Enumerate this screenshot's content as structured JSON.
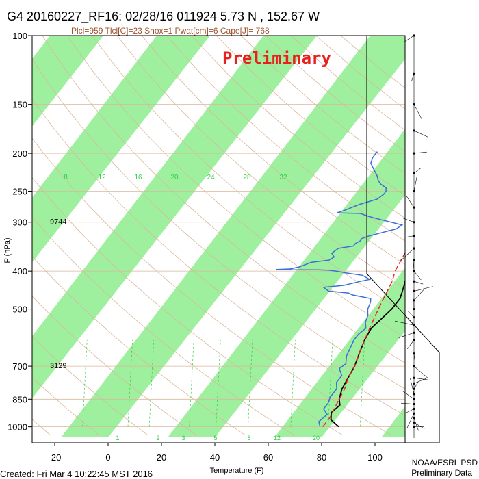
{
  "header": {
    "title": "G4 20160227_RF16: 02/28/16 011924   5.73 N , 152.67 W",
    "subtitle": "Plcl=959 Tlcl[C]=23 Shox=1 Pwat[cm]=6 Cape[J]= 768",
    "watermark": "Preliminary"
  },
  "footer": {
    "created": "Created: Fri Mar  4 10:22:45 MST 2016",
    "org": "NOAA/ESRL PSD",
    "org_sub": "Preliminary Data"
  },
  "colors": {
    "band": "#9ef09e",
    "temperature": "#000000",
    "dewpoint": "#3a6fd8",
    "parcel": "#e8201e",
    "dry_adiabat": "#d9b79a",
    "mixing_ratio": "#2ecc40",
    "watermark": "#e8201e",
    "subtitle": "#a0522d"
  },
  "chart_data": {
    "type": "line",
    "xlabel": "Temperature (F)",
    "ylabel": "P (hPa)",
    "x_ticks": [
      "-20",
      "0",
      "20",
      "40",
      "60",
      "80",
      "100"
    ],
    "y_ticks": [
      "100",
      "150",
      "200",
      "250",
      "300",
      "400",
      "500",
      "700",
      "850",
      "1000"
    ],
    "height_labels": [
      {
        "p": 300,
        "text": "9744"
      },
      {
        "p": 700,
        "text": "3129"
      }
    ],
    "mixing_ratio_labels": [
      "8",
      "12",
      "16",
      "20",
      "24",
      "28",
      "32"
    ],
    "mixing_ratio_bottom_labels": [
      "1",
      "2",
      "3",
      "5",
      "8",
      "12",
      "20"
    ],
    "series": [
      {
        "key": "temperature",
        "points": [
          [
            84,
            1000
          ],
          [
            79,
            960
          ],
          [
            77,
            920
          ],
          [
            78,
            880
          ],
          [
            76,
            850
          ],
          [
            74,
            800
          ],
          [
            73,
            750
          ],
          [
            72,
            700
          ],
          [
            70,
            650
          ],
          [
            68,
            600
          ],
          [
            67,
            560
          ],
          [
            68,
            530
          ],
          [
            69,
            500
          ],
          [
            69,
            470
          ],
          [
            67,
            440
          ],
          [
            65,
            415
          ],
          [
            65,
            400
          ],
          [
            65,
            385
          ],
          [
            64,
            370
          ],
          [
            63,
            355
          ],
          [
            62,
            340
          ],
          [
            60,
            320
          ],
          [
            58,
            300
          ],
          [
            56,
            285
          ],
          [
            52,
            265
          ],
          [
            51,
            255
          ],
          [
            48,
            235
          ],
          [
            46,
            225
          ],
          [
            43,
            210
          ],
          [
            38,
            190
          ],
          [
            34,
            175
          ]
        ]
      },
      {
        "key": "dewpoint",
        "points": [
          [
            77,
            1000
          ],
          [
            75,
            970
          ],
          [
            76,
            930
          ],
          [
            73,
            900
          ],
          [
            73,
            870
          ],
          [
            72,
            840
          ],
          [
            72,
            800
          ],
          [
            70,
            770
          ],
          [
            70,
            740
          ],
          [
            67,
            710
          ],
          [
            68,
            690
          ],
          [
            66,
            660
          ],
          [
            65,
            630
          ],
          [
            64,
            600
          ],
          [
            64,
            580
          ],
          [
            65,
            560
          ],
          [
            63,
            540
          ],
          [
            62,
            520
          ],
          [
            60,
            500
          ],
          [
            59,
            480
          ],
          [
            58,
            470
          ],
          [
            50,
            460
          ],
          [
            48,
            455
          ],
          [
            40,
            450
          ],
          [
            37,
            440
          ],
          [
            44,
            435
          ],
          [
            49,
            425
          ],
          [
            52,
            420
          ],
          [
            48,
            410
          ],
          [
            42,
            405
          ],
          [
            37,
            400
          ],
          [
            34,
            398
          ],
          [
            30,
            397
          ],
          [
            24,
            397
          ],
          [
            18,
            397
          ],
          [
            14,
            396
          ],
          [
            19,
            395
          ],
          [
            22,
            390
          ],
          [
            25,
            380
          ],
          [
            31,
            375
          ],
          [
            32,
            368
          ],
          [
            30,
            360
          ],
          [
            31,
            350
          ],
          [
            36,
            345
          ],
          [
            36,
            340
          ],
          [
            37,
            335
          ],
          [
            37,
            330
          ],
          [
            39,
            325
          ],
          [
            42,
            320
          ],
          [
            47,
            312
          ],
          [
            48,
            305
          ],
          [
            43,
            300
          ],
          [
            38,
            295
          ],
          [
            33,
            290
          ],
          [
            29,
            285
          ],
          [
            20,
            284
          ],
          [
            22,
            280
          ],
          [
            26,
            270
          ],
          [
            31,
            262
          ],
          [
            32,
            255
          ],
          [
            32,
            250
          ],
          [
            31,
            245
          ],
          [
            28,
            240
          ],
          [
            26,
            235
          ],
          [
            24,
            228
          ],
          [
            21,
            220
          ],
          [
            18,
            212
          ],
          [
            17,
            205
          ],
          [
            17,
            198
          ]
        ]
      },
      {
        "key": "parcel",
        "points": [
          [
            78,
            1000
          ],
          [
            78,
            950
          ],
          [
            77,
            900
          ],
          [
            76,
            850
          ],
          [
            75,
            800
          ],
          [
            73,
            750
          ],
          [
            72,
            700
          ],
          [
            70,
            650
          ],
          [
            68,
            600
          ],
          [
            66,
            550
          ],
          [
            64,
            500
          ],
          [
            63,
            475
          ],
          [
            62,
            450
          ],
          [
            61,
            425
          ],
          [
            59,
            400
          ],
          [
            58,
            375
          ],
          [
            57,
            350
          ],
          [
            55,
            325
          ],
          [
            53,
            300
          ],
          [
            50,
            275
          ],
          [
            47,
            250
          ],
          [
            44,
            225
          ],
          [
            39,
            200
          ],
          [
            37,
            190
          ],
          [
            34,
            180
          ]
        ]
      }
    ]
  }
}
